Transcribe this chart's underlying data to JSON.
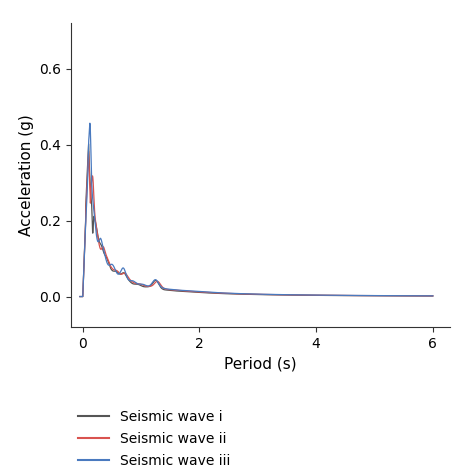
{
  "xlabel": "Period (s)",
  "ylabel": "Acceleration (g)",
  "xlim": [
    -0.2,
    6.3
  ],
  "ylim": [
    -0.08,
    0.72
  ],
  "yticks": [
    0.0,
    0.2,
    0.4,
    0.6
  ],
  "xticks": [
    0,
    2,
    4,
    6
  ],
  "legend_labels": [
    "Seismic wave i",
    "Seismic wave ii",
    "Seismic wave iii"
  ],
  "colors": [
    "#555555",
    "#d9534f",
    "#4a7abf"
  ],
  "linewidth": 0.9,
  "background_color": "#ffffff"
}
